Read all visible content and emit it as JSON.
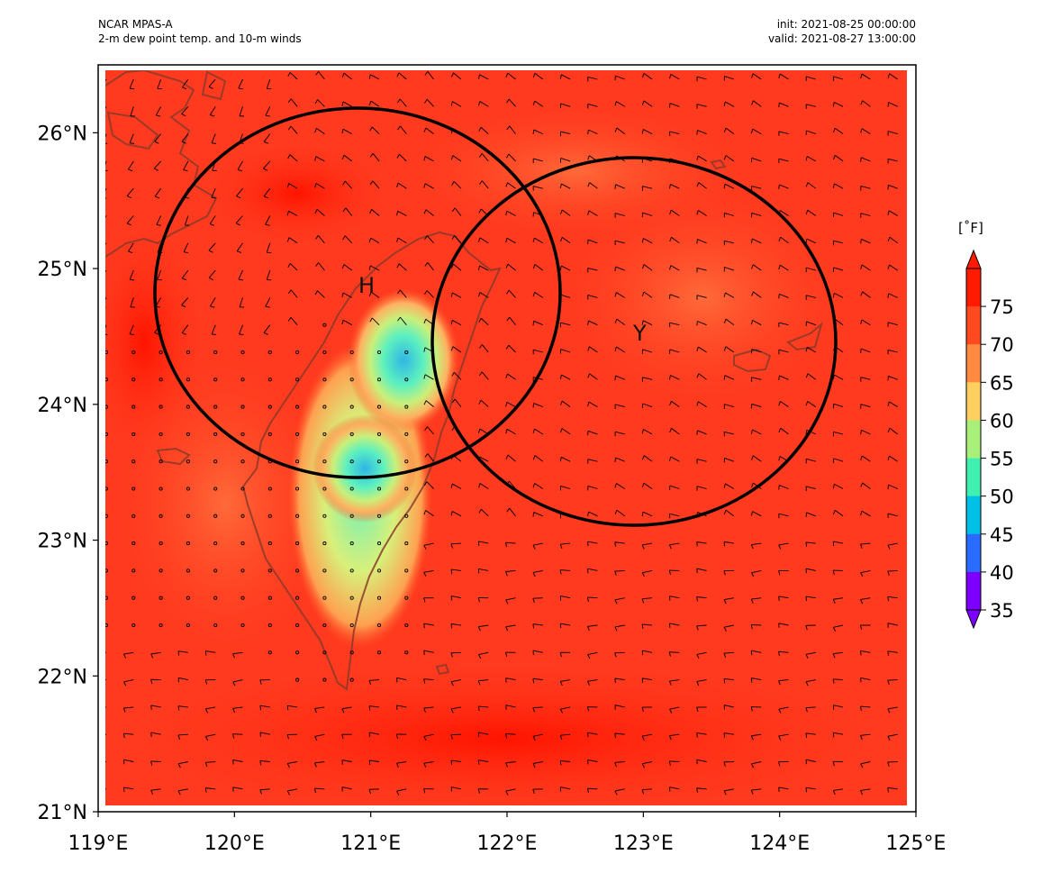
{
  "header": {
    "model": "NCAR MPAS-A",
    "product": "2-m dew point temp. and 10-m winds",
    "init": "init: 2021-08-25 00:00:00",
    "valid": "valid: 2021-08-27 13:00:00"
  },
  "map": {
    "lon_range": [
      119,
      125
    ],
    "lat_range": [
      21,
      26.5
    ],
    "x_ticks": [
      "119°E",
      "120°E",
      "121°E",
      "122°E",
      "123°E",
      "124°E",
      "125°E"
    ],
    "y_ticks": [
      "21°N",
      "22°N",
      "23°N",
      "24°N",
      "25°N",
      "26°N"
    ],
    "markers": [
      {
        "label": "H",
        "lon": 120.97,
        "lat": 24.88
      },
      {
        "label": "Y",
        "lon": 122.97,
        "lat": 24.55
      }
    ],
    "circles": [
      {
        "lon": 120.95,
        "lat": 24.82
      },
      {
        "lon": 122.95,
        "lat": 24.45
      }
    ],
    "colors": {
      "background_field": "#ff3a1e",
      "moist_core": "#ff1a0a",
      "dry_core": "#34c3e8",
      "coastline": "#8a3a2a",
      "circle": "#000000"
    }
  },
  "colorbar": {
    "unit": "[˚F]",
    "ticks": [
      "35",
      "40",
      "45",
      "50",
      "55",
      "60",
      "65",
      "70",
      "75"
    ],
    "min": 35,
    "max": 80,
    "colormap": [
      "#7d00ff",
      "#2a6cff",
      "#00c0e8",
      "#40f0b0",
      "#a8f07a",
      "#ffd060",
      "#ff8a40",
      "#ff4a20",
      "#ff1a00"
    ]
  }
}
